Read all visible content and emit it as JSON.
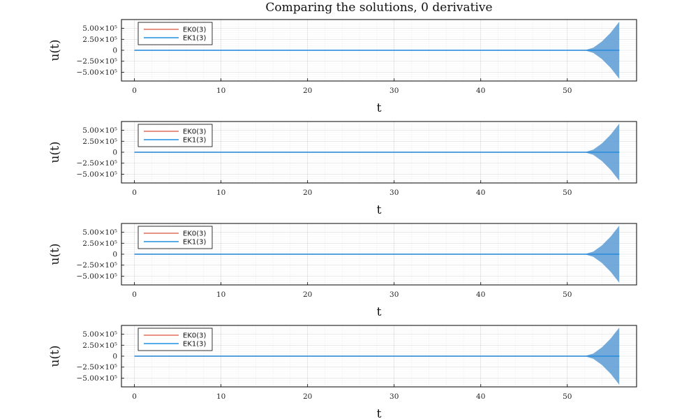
{
  "title": "Comparing the solutions, 0 derivative",
  "colors": {
    "ek0": "#e26f5a",
    "ek1": "#1e8fe6",
    "band": "#5b9bd5"
  },
  "chart_data": [
    {
      "type": "line",
      "xlabel": "t",
      "ylabel": "u(t)",
      "xlim": [
        -1.5,
        58
      ],
      "ylim": [
        -700000,
        700000
      ],
      "xticks": [
        0,
        10,
        20,
        30,
        40,
        50
      ],
      "ytick_labels": [
        "5.00×10⁵",
        "2.50×10⁵",
        "0",
        "−2.50×10⁵",
        "−5.00×10⁵"
      ],
      "yticks": [
        500000,
        250000,
        0,
        -250000,
        -500000
      ],
      "grid": true,
      "legend_position": "top-left",
      "series": [
        {
          "name": "EK0(3)",
          "x": [
            0,
            56
          ],
          "y": [
            0,
            0
          ]
        },
        {
          "name": "EK1(3)",
          "x": [
            0,
            56
          ],
          "y": [
            0,
            0
          ]
        }
      ],
      "uncertainty_band": {
        "x": [
          52,
          53,
          54,
          55,
          56
        ],
        "half_width": [
          0,
          60000,
          200000,
          400000,
          650000
        ]
      }
    },
    {
      "type": "line",
      "xlabel": "t",
      "ylabel": "u(t)",
      "xlim": [
        -1.5,
        58
      ],
      "ylim": [
        -700000,
        700000
      ],
      "xticks": [
        0,
        10,
        20,
        30,
        40,
        50
      ],
      "ytick_labels": [
        "5.00×10⁵",
        "2.50×10⁵",
        "0",
        "−2.50×10⁵",
        "−5.00×10⁵"
      ],
      "yticks": [
        500000,
        250000,
        0,
        -250000,
        -500000
      ],
      "grid": true,
      "legend_position": "top-left",
      "series": [
        {
          "name": "EK0(3)",
          "x": [
            0,
            56
          ],
          "y": [
            0,
            0
          ]
        },
        {
          "name": "EK1(3)",
          "x": [
            0,
            56
          ],
          "y": [
            0,
            0
          ]
        }
      ],
      "uncertainty_band": {
        "x": [
          52,
          53,
          54,
          55,
          56
        ],
        "half_width": [
          0,
          60000,
          200000,
          400000,
          650000
        ]
      }
    },
    {
      "type": "line",
      "xlabel": "t",
      "ylabel": "u(t)",
      "xlim": [
        -1.5,
        58
      ],
      "ylim": [
        -700000,
        700000
      ],
      "xticks": [
        0,
        10,
        20,
        30,
        40,
        50
      ],
      "ytick_labels": [
        "5.00×10⁵",
        "2.50×10⁵",
        "0",
        "−2.50×10⁵",
        "−5.00×10⁵"
      ],
      "yticks": [
        500000,
        250000,
        0,
        -250000,
        -500000
      ],
      "grid": true,
      "legend_position": "top-left",
      "series": [
        {
          "name": "EK0(3)",
          "x": [
            0,
            56
          ],
          "y": [
            0,
            0
          ]
        },
        {
          "name": "EK1(3)",
          "x": [
            0,
            56
          ],
          "y": [
            0,
            0
          ]
        }
      ],
      "uncertainty_band": {
        "x": [
          52,
          53,
          54,
          55,
          56
        ],
        "half_width": [
          0,
          60000,
          200000,
          400000,
          650000
        ]
      }
    },
    {
      "type": "line",
      "xlabel": "t",
      "ylabel": "u(t)",
      "xlim": [
        -1.5,
        58
      ],
      "ylim": [
        -700000,
        700000
      ],
      "xticks": [
        0,
        10,
        20,
        30,
        40,
        50
      ],
      "ytick_labels": [
        "5.00×10⁵",
        "2.50×10⁵",
        "0",
        "−2.50×10⁵",
        "−5.00×10⁵"
      ],
      "yticks": [
        500000,
        250000,
        0,
        -250000,
        -500000
      ],
      "grid": true,
      "legend_position": "top-left",
      "series": [
        {
          "name": "EK0(3)",
          "x": [
            0,
            56
          ],
          "y": [
            0,
            0
          ]
        },
        {
          "name": "EK1(3)",
          "x": [
            0,
            56
          ],
          "y": [
            0,
            0
          ]
        }
      ],
      "uncertainty_band": {
        "x": [
          52,
          53,
          54,
          55,
          56
        ],
        "half_width": [
          0,
          60000,
          200000,
          400000,
          650000
        ]
      }
    }
  ]
}
